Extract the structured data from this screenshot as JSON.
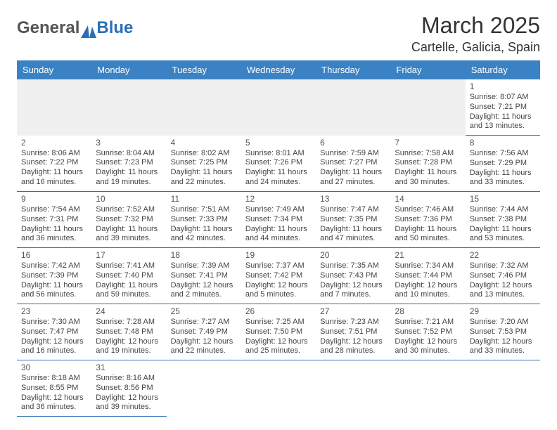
{
  "brand": {
    "part1": "General",
    "part2": "Blue"
  },
  "title": "March 2025",
  "subtitle": "Cartelle, Galicia, Spain",
  "colors": {
    "header_bg": "#3b82c4",
    "header_text": "#ffffff",
    "border": "#2c6fb5",
    "brand_gray": "#555555",
    "brand_blue": "#2c6fb5",
    "blank_row": "#f0f0f0"
  },
  "dayHeaders": [
    "Sunday",
    "Monday",
    "Tuesday",
    "Wednesday",
    "Thursday",
    "Friday",
    "Saturday"
  ],
  "weeks": [
    [
      null,
      null,
      null,
      null,
      null,
      null,
      {
        "n": "1",
        "sr": "Sunrise: 8:07 AM",
        "ss": "Sunset: 7:21 PM",
        "dl1": "Daylight: 11 hours",
        "dl2": "and 13 minutes."
      }
    ],
    [
      {
        "n": "2",
        "sr": "Sunrise: 8:06 AM",
        "ss": "Sunset: 7:22 PM",
        "dl1": "Daylight: 11 hours",
        "dl2": "and 16 minutes."
      },
      {
        "n": "3",
        "sr": "Sunrise: 8:04 AM",
        "ss": "Sunset: 7:23 PM",
        "dl1": "Daylight: 11 hours",
        "dl2": "and 19 minutes."
      },
      {
        "n": "4",
        "sr": "Sunrise: 8:02 AM",
        "ss": "Sunset: 7:25 PM",
        "dl1": "Daylight: 11 hours",
        "dl2": "and 22 minutes."
      },
      {
        "n": "5",
        "sr": "Sunrise: 8:01 AM",
        "ss": "Sunset: 7:26 PM",
        "dl1": "Daylight: 11 hours",
        "dl2": "and 24 minutes."
      },
      {
        "n": "6",
        "sr": "Sunrise: 7:59 AM",
        "ss": "Sunset: 7:27 PM",
        "dl1": "Daylight: 11 hours",
        "dl2": "and 27 minutes."
      },
      {
        "n": "7",
        "sr": "Sunrise: 7:58 AM",
        "ss": "Sunset: 7:28 PM",
        "dl1": "Daylight: 11 hours",
        "dl2": "and 30 minutes."
      },
      {
        "n": "8",
        "sr": "Sunrise: 7:56 AM",
        "ss": "Sunset: 7:29 PM",
        "dl1": "Daylight: 11 hours",
        "dl2": "and 33 minutes."
      }
    ],
    [
      {
        "n": "9",
        "sr": "Sunrise: 7:54 AM",
        "ss": "Sunset: 7:31 PM",
        "dl1": "Daylight: 11 hours",
        "dl2": "and 36 minutes."
      },
      {
        "n": "10",
        "sr": "Sunrise: 7:52 AM",
        "ss": "Sunset: 7:32 PM",
        "dl1": "Daylight: 11 hours",
        "dl2": "and 39 minutes."
      },
      {
        "n": "11",
        "sr": "Sunrise: 7:51 AM",
        "ss": "Sunset: 7:33 PM",
        "dl1": "Daylight: 11 hours",
        "dl2": "and 42 minutes."
      },
      {
        "n": "12",
        "sr": "Sunrise: 7:49 AM",
        "ss": "Sunset: 7:34 PM",
        "dl1": "Daylight: 11 hours",
        "dl2": "and 44 minutes."
      },
      {
        "n": "13",
        "sr": "Sunrise: 7:47 AM",
        "ss": "Sunset: 7:35 PM",
        "dl1": "Daylight: 11 hours",
        "dl2": "and 47 minutes."
      },
      {
        "n": "14",
        "sr": "Sunrise: 7:46 AM",
        "ss": "Sunset: 7:36 PM",
        "dl1": "Daylight: 11 hours",
        "dl2": "and 50 minutes."
      },
      {
        "n": "15",
        "sr": "Sunrise: 7:44 AM",
        "ss": "Sunset: 7:38 PM",
        "dl1": "Daylight: 11 hours",
        "dl2": "and 53 minutes."
      }
    ],
    [
      {
        "n": "16",
        "sr": "Sunrise: 7:42 AM",
        "ss": "Sunset: 7:39 PM",
        "dl1": "Daylight: 11 hours",
        "dl2": "and 56 minutes."
      },
      {
        "n": "17",
        "sr": "Sunrise: 7:41 AM",
        "ss": "Sunset: 7:40 PM",
        "dl1": "Daylight: 11 hours",
        "dl2": "and 59 minutes."
      },
      {
        "n": "18",
        "sr": "Sunrise: 7:39 AM",
        "ss": "Sunset: 7:41 PM",
        "dl1": "Daylight: 12 hours",
        "dl2": "and 2 minutes."
      },
      {
        "n": "19",
        "sr": "Sunrise: 7:37 AM",
        "ss": "Sunset: 7:42 PM",
        "dl1": "Daylight: 12 hours",
        "dl2": "and 5 minutes."
      },
      {
        "n": "20",
        "sr": "Sunrise: 7:35 AM",
        "ss": "Sunset: 7:43 PM",
        "dl1": "Daylight: 12 hours",
        "dl2": "and 7 minutes."
      },
      {
        "n": "21",
        "sr": "Sunrise: 7:34 AM",
        "ss": "Sunset: 7:44 PM",
        "dl1": "Daylight: 12 hours",
        "dl2": "and 10 minutes."
      },
      {
        "n": "22",
        "sr": "Sunrise: 7:32 AM",
        "ss": "Sunset: 7:46 PM",
        "dl1": "Daylight: 12 hours",
        "dl2": "and 13 minutes."
      }
    ],
    [
      {
        "n": "23",
        "sr": "Sunrise: 7:30 AM",
        "ss": "Sunset: 7:47 PM",
        "dl1": "Daylight: 12 hours",
        "dl2": "and 16 minutes."
      },
      {
        "n": "24",
        "sr": "Sunrise: 7:28 AM",
        "ss": "Sunset: 7:48 PM",
        "dl1": "Daylight: 12 hours",
        "dl2": "and 19 minutes."
      },
      {
        "n": "25",
        "sr": "Sunrise: 7:27 AM",
        "ss": "Sunset: 7:49 PM",
        "dl1": "Daylight: 12 hours",
        "dl2": "and 22 minutes."
      },
      {
        "n": "26",
        "sr": "Sunrise: 7:25 AM",
        "ss": "Sunset: 7:50 PM",
        "dl1": "Daylight: 12 hours",
        "dl2": "and 25 minutes."
      },
      {
        "n": "27",
        "sr": "Sunrise: 7:23 AM",
        "ss": "Sunset: 7:51 PM",
        "dl1": "Daylight: 12 hours",
        "dl2": "and 28 minutes."
      },
      {
        "n": "28",
        "sr": "Sunrise: 7:21 AM",
        "ss": "Sunset: 7:52 PM",
        "dl1": "Daylight: 12 hours",
        "dl2": "and 30 minutes."
      },
      {
        "n": "29",
        "sr": "Sunrise: 7:20 AM",
        "ss": "Sunset: 7:53 PM",
        "dl1": "Daylight: 12 hours",
        "dl2": "and 33 minutes."
      }
    ],
    [
      {
        "n": "30",
        "sr": "Sunrise: 8:18 AM",
        "ss": "Sunset: 8:55 PM",
        "dl1": "Daylight: 12 hours",
        "dl2": "and 36 minutes."
      },
      {
        "n": "31",
        "sr": "Sunrise: 8:16 AM",
        "ss": "Sunset: 8:56 PM",
        "dl1": "Daylight: 12 hours",
        "dl2": "and 39 minutes."
      },
      null,
      null,
      null,
      null,
      null
    ]
  ]
}
